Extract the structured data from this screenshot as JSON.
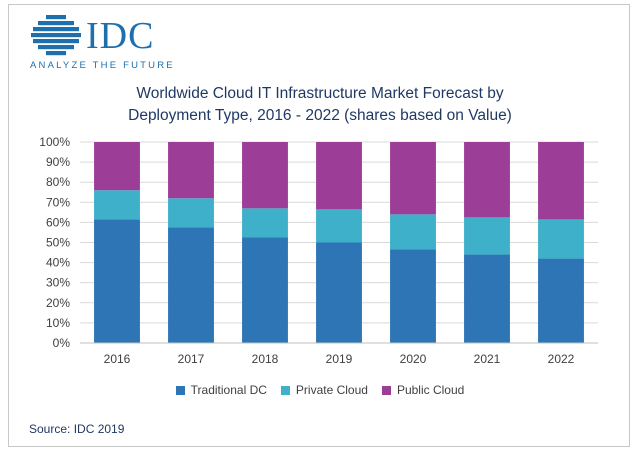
{
  "logo": {
    "name": "IDC",
    "tagline": "ANALYZE THE FUTURE",
    "color": "#1d6fae"
  },
  "chart_data": {
    "type": "bar",
    "stacked": true,
    "percent": true,
    "title": "Worldwide Cloud IT Infrastructure Market Forecast by Deployment Type, 2016 - 2022 (shares based on Value)",
    "title_lines": [
      "Worldwide Cloud IT Infrastructure Market Forecast by",
      "Deployment Type, 2016 - 2022 (shares based on Value)"
    ],
    "categories": [
      "2016",
      "2017",
      "2018",
      "2019",
      "2020",
      "2021",
      "2022"
    ],
    "series": [
      {
        "name": "Traditional DC",
        "color": "#2e75b6",
        "values": [
          61.5,
          57.5,
          52.5,
          50.0,
          46.5,
          44.0,
          42.0
        ]
      },
      {
        "name": "Private Cloud",
        "color": "#3fb0c9",
        "values": [
          14.5,
          14.5,
          14.5,
          16.5,
          17.5,
          18.5,
          19.5
        ]
      },
      {
        "name": "Public Cloud",
        "color": "#9c3d97",
        "values": [
          24.0,
          28.0,
          33.0,
          33.5,
          36.0,
          37.5,
          38.5
        ]
      }
    ],
    "ylim": [
      0,
      100
    ],
    "yticks": [
      "0%",
      "10%",
      "20%",
      "30%",
      "40%",
      "50%",
      "60%",
      "70%",
      "80%",
      "90%",
      "100%"
    ],
    "xlabel": "",
    "ylabel": "",
    "grid": true,
    "legend": "bottom",
    "source": "Source: IDC 2019"
  }
}
